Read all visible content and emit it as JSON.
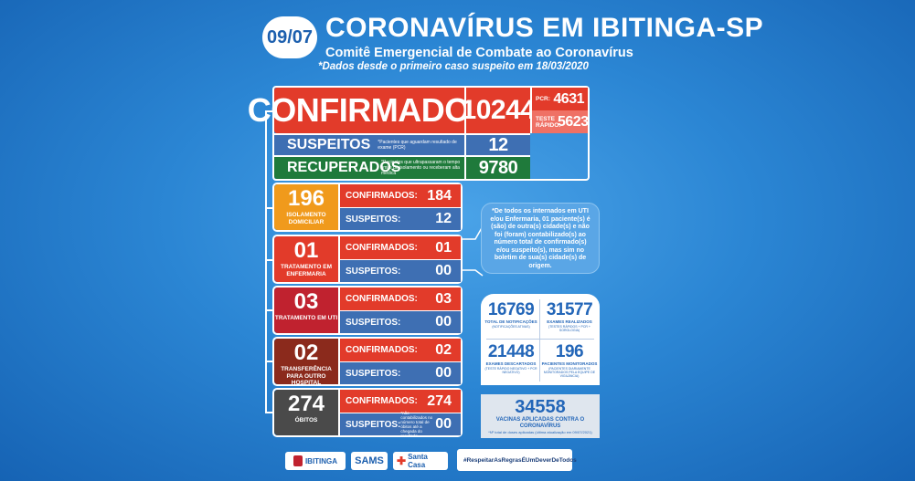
{
  "header": {
    "date": "09/07",
    "title": "CORONAVÍRUS EM IBITINGA-SP",
    "subtitle": "Comitê Emergencial de Combate ao Coronavírus",
    "since_note": "*Dados desde o primeiro caso suspeito em 18/03/2020"
  },
  "summary": {
    "confirmados_label": "CONFIRMADOS",
    "confirmados_total": "10244",
    "pcr_label": "PCR:",
    "pcr_value": "4631",
    "teste_label": "TESTE RÁPIDO:",
    "teste_value": "5623",
    "suspeitos_label": "SUSPEITOS",
    "suspeitos_note": "*Pacientes que aguardam resultado de exame (PCR)",
    "suspeitos_total": "12",
    "recuperados_label": "RECUPERADOS",
    "recuperados_note": "*Pacientes que ultrapassaram o tempo limite de isolamento ou receberam alta médica",
    "recuperados_total": "9780"
  },
  "categories": [
    {
      "num": "196",
      "label": "ISOLAMENTO DOMICILIAR",
      "color": "#f09a1c",
      "confirmados_label": "CONFIRMADOS:",
      "confirmados": "184",
      "suspeitos_label": "SUSPEITOS:",
      "suspeitos": "12"
    },
    {
      "num": "01",
      "label": "TRATAMENTO EM ENFERMARIA",
      "color": "#e23b2a",
      "confirmados_label": "CONFIRMADOS:",
      "confirmados": "01",
      "suspeitos_label": "SUSPEITOS:",
      "suspeitos": "00"
    },
    {
      "num": "03",
      "label": "TRATAMENTO EM UTI",
      "color": "#c0222f",
      "confirmados_label": "CONFIRMADOS:",
      "confirmados": "03",
      "suspeitos_label": "SUSPEITOS:",
      "suspeitos": "00"
    },
    {
      "num": "02",
      "label": "TRANSFERÊNCIA PARA OUTRO HOSPITAL",
      "color": "#8b2a1c",
      "confirmados_label": "CONFIRMADOS:",
      "confirmados": "02",
      "suspeitos_label": "SUSPEITOS:",
      "suspeitos": "00"
    },
    {
      "num": "274",
      "label": "ÓBITOS",
      "color": "#4a4a4a",
      "confirmados_label": "CONFIRMADOS:",
      "confirmados": "274",
      "suspeitos_label": "SUSPEITOS:",
      "suspeitos": "00",
      "suspeitos_note": "*não contabilizados no número total de óbitos até a chegada do resultado"
    }
  ],
  "info_note": "*De todos os internados em UTI e/ou Enfermaria, 01 paciente(s) é (são) de outra(s) cidade(s) e não foi (foram) contabilizado(s) ao número total de confirmado(s) e/ou suspeito(s), mas sim no boletim de sua(s) cidade(s) de origem.",
  "stats": {
    "notificacoes": "16769",
    "notificacoes_label": "TOTAL DE NOTIFICAÇÕES",
    "notificacoes_sub": "(NOTIFICAÇÕES ATIVAS)",
    "exames": "31577",
    "exames_label": "EXAMES REALIZADOS",
    "exames_sub": "(TESTES RÁPIDOS + PCR + SOROLOGIA)",
    "descartados": "21448",
    "descartados_label": "EXAMES DESCARTADOS",
    "descartados_sub": "(TESTE RÁPIDO NEGATIVO + PCR NEGATIVO)",
    "monitorados": "196",
    "monitorados_label": "PACIENTES MONITORADOS",
    "monitorados_sub": "(PACIENTES DIARIAMENTE MONITORADOS PELA EQUIPE DE VIGILÂNCIA)"
  },
  "vacinas": {
    "value": "34558",
    "label": "VACINAS APLICADAS CONTRA O CORONAVÍRUS",
    "sub": "*Nº total de doses aplicadas (última atualização em 09/07/2021)"
  },
  "footer": {
    "logo1": "IBITINGA",
    "logo2": "SAMS",
    "logo3": "Santa Casa",
    "hashtag": "#RespeitarAsRegrasÉUmDeverDeTodos"
  },
  "colors": {
    "red": "#e23b2a",
    "blue": "#3e6fb3",
    "green": "#1f7a3b",
    "orange": "#f09a1c"
  }
}
